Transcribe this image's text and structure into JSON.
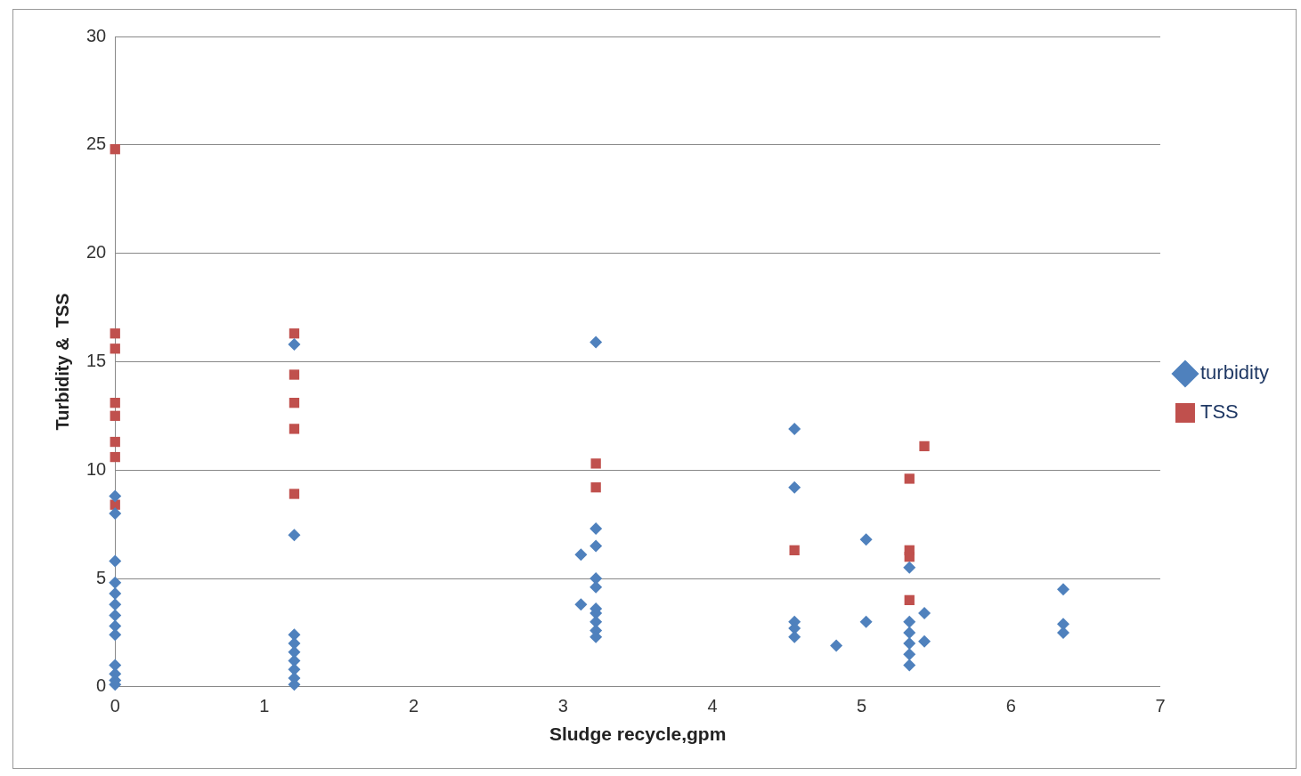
{
  "chart_data": {
    "type": "scatter",
    "xlabel": "Sludge recycle,gpm",
    "ylabel": "Turbidity &  TSS",
    "xlim": [
      0,
      7
    ],
    "xticks": [
      0,
      1,
      2,
      3,
      4,
      5,
      6,
      7
    ],
    "ylim": [
      0,
      30
    ],
    "yticks": [
      0,
      5,
      10,
      15,
      20,
      25,
      30
    ],
    "grid": "y",
    "legend": "right",
    "series": [
      {
        "name": "turbidity",
        "color": "#4f81bd",
        "marker": "diamond",
        "x": [
          0,
          0,
          0,
          0,
          0,
          0,
          0,
          0,
          0,
          0,
          0,
          0,
          0,
          1.2,
          1.2,
          1.2,
          1.2,
          1.2,
          1.2,
          1.2,
          1.2,
          1.2,
          3.22,
          3.22,
          3.22,
          3.12,
          3.22,
          3.22,
          3.12,
          3.22,
          3.22,
          3.22,
          3.22,
          3.22,
          4.55,
          4.55,
          4.55,
          4.55,
          4.55,
          4.83,
          5.03,
          5.03,
          5.32,
          5.32,
          5.32,
          5.32,
          5.32,
          5.32,
          5.42,
          5.42,
          6.35,
          6.35,
          6.35
        ],
        "values": [
          8.8,
          8.0,
          5.8,
          4.8,
          4.3,
          3.8,
          3.3,
          2.8,
          2.4,
          1.0,
          0.6,
          0.3,
          0.1,
          15.8,
          7.0,
          2.4,
          2.0,
          1.6,
          1.2,
          0.8,
          0.4,
          0.1,
          15.9,
          7.3,
          6.5,
          6.1,
          5.0,
          4.6,
          3.8,
          3.6,
          3.4,
          3.0,
          2.6,
          2.3,
          11.9,
          9.2,
          3.0,
          2.7,
          2.3,
          1.9,
          6.8,
          3.0,
          5.5,
          3.0,
          2.5,
          2.0,
          1.5,
          1.0,
          3.4,
          2.1,
          4.5,
          2.9,
          2.5
        ]
      },
      {
        "name": "TSS",
        "color": "#c0504d",
        "marker": "square",
        "x": [
          0,
          0,
          0,
          0,
          0,
          0,
          0,
          0,
          1.2,
          1.2,
          1.2,
          1.2,
          1.2,
          3.22,
          3.22,
          4.55,
          5.32,
          5.32,
          5.32,
          5.32,
          5.42
        ],
        "values": [
          24.8,
          16.3,
          15.6,
          13.1,
          12.5,
          11.3,
          10.6,
          8.4,
          16.3,
          14.4,
          13.1,
          11.9,
          8.9,
          10.3,
          9.2,
          6.3,
          9.6,
          6.3,
          6.0,
          4.0,
          11.1
        ]
      }
    ]
  }
}
